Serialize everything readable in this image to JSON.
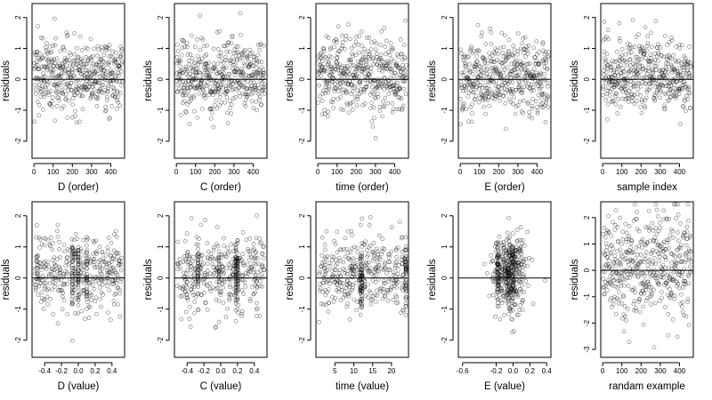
{
  "chart_data": [
    {
      "type": "scatter",
      "xlabel": "D (order)",
      "ylabel": "residuals",
      "xlim": [
        -10,
        472
      ],
      "ylim": [
        -2.55,
        2.45
      ],
      "xticks": [
        0,
        100,
        200,
        300,
        400
      ],
      "xtick_labels": [
        "0",
        "100",
        "200",
        "300",
        "400"
      ],
      "yticks": [
        -2,
        -1,
        0,
        1,
        2
      ],
      "ytick_labels": [
        "-2",
        "-1",
        "0",
        "1",
        "2"
      ],
      "hline": 0,
      "points": {
        "n": 460,
        "x_kind": "index",
        "x_min": 1,
        "x_max": 460,
        "y_center": 0.15,
        "y_spread": 0.6,
        "y_min": -2.3,
        "y_max": 2.2
      }
    },
    {
      "type": "scatter",
      "xlabel": "C (order)",
      "ylabel": "residuals",
      "xlim": [
        -10,
        472
      ],
      "ylim": [
        -2.55,
        2.45
      ],
      "xticks": [
        0,
        100,
        200,
        300,
        400
      ],
      "xtick_labels": [
        "0",
        "100",
        "200",
        "300",
        "400"
      ],
      "yticks": [
        -2,
        -1,
        0,
        1,
        2
      ],
      "ytick_labels": [
        "-2",
        "-1",
        "0",
        "1",
        "2"
      ],
      "hline": 0,
      "points": {
        "n": 460,
        "x_kind": "index",
        "x_min": 1,
        "x_max": 460,
        "y_center": 0.15,
        "y_spread": 0.6,
        "y_min": -2.3,
        "y_max": 2.2
      }
    },
    {
      "type": "scatter",
      "xlabel": "time (order)",
      "ylabel": "residuals",
      "xlim": [
        -10,
        472
      ],
      "ylim": [
        -2.55,
        2.45
      ],
      "xticks": [
        0,
        100,
        200,
        300,
        400
      ],
      "xtick_labels": [
        "0",
        "100",
        "200",
        "300",
        "400"
      ],
      "yticks": [
        -2,
        -1,
        0,
        1,
        2
      ],
      "ytick_labels": [
        "-2",
        "-1",
        "0",
        "1",
        "2"
      ],
      "hline": 0,
      "points": {
        "n": 460,
        "x_kind": "index",
        "x_min": 1,
        "x_max": 460,
        "y_center": 0.15,
        "y_spread": 0.6,
        "y_min": -2.3,
        "y_max": 2.2
      }
    },
    {
      "type": "scatter",
      "xlabel": "E (order)",
      "ylabel": "residuals",
      "xlim": [
        -10,
        472
      ],
      "ylim": [
        -2.55,
        2.45
      ],
      "xticks": [
        0,
        100,
        200,
        300,
        400
      ],
      "xtick_labels": [
        "0",
        "100",
        "200",
        "300",
        "400"
      ],
      "yticks": [
        -2,
        -1,
        0,
        1,
        2
      ],
      "ytick_labels": [
        "-2",
        "-1",
        "0",
        "1",
        "2"
      ],
      "hline": 0,
      "points": {
        "n": 460,
        "x_kind": "index",
        "x_min": 1,
        "x_max": 460,
        "y_center": 0.15,
        "y_spread": 0.6,
        "y_min": -2.3,
        "y_max": 2.2
      }
    },
    {
      "type": "scatter",
      "xlabel": "sample index",
      "ylabel": "residuals",
      "xlim": [
        -10,
        472
      ],
      "ylim": [
        -2.55,
        2.45
      ],
      "xticks": [
        0,
        100,
        200,
        300,
        400
      ],
      "xtick_labels": [
        "0",
        "100",
        "200",
        "300",
        "400"
      ],
      "yticks": [
        -2,
        -1,
        0,
        1,
        2
      ],
      "ytick_labels": [
        "-2",
        "-1",
        "0",
        "1",
        "2"
      ],
      "hline": 0,
      "points": {
        "n": 460,
        "x_kind": "index",
        "x_min": 1,
        "x_max": 460,
        "y_center": 0.15,
        "y_spread": 0.6,
        "y_min": -2.3,
        "y_max": 2.2
      }
    },
    {
      "type": "scatter",
      "xlabel": "D (value)",
      "ylabel": "residuals",
      "xlim": [
        -0.55,
        0.55
      ],
      "ylim": [
        -2.55,
        2.45
      ],
      "xticks": [
        -0.4,
        -0.2,
        0,
        0.2,
        0.4
      ],
      "xtick_labels": [
        "-0.4",
        "-0.2",
        "0.0",
        "0.2",
        "0.4"
      ],
      "yticks": [
        -2,
        -1,
        0,
        1,
        2
      ],
      "ytick_labels": [
        "-2",
        "-1",
        "0",
        "1",
        "2"
      ],
      "hline": 0,
      "points": {
        "n": 460,
        "x_kind": "uniform",
        "x_min": -0.52,
        "x_max": 0.52,
        "x_columns": [
          -0.07,
          0.0,
          0.1
        ],
        "y_center": 0.15,
        "y_spread": 0.6,
        "y_min": -2.3,
        "y_max": 2.2
      }
    },
    {
      "type": "scatter",
      "xlabel": "C (value)",
      "ylabel": "residuals",
      "xlim": [
        -0.55,
        0.55
      ],
      "ylim": [
        -2.55,
        2.45
      ],
      "xticks": [
        -0.4,
        -0.2,
        0,
        0.2,
        0.4
      ],
      "xtick_labels": [
        "-0.4",
        "-0.2",
        "0.0",
        "0.2",
        "0.4"
      ],
      "yticks": [
        -2,
        -1,
        0,
        1,
        2
      ],
      "ytick_labels": [
        "-2",
        "-1",
        "0",
        "1",
        "2"
      ],
      "hline": 0,
      "points": {
        "n": 460,
        "x_kind": "uniform",
        "x_min": -0.52,
        "x_max": 0.52,
        "x_columns": [
          -0.27,
          -0.02,
          0.18,
          0.2
        ],
        "y_center": 0.15,
        "y_spread": 0.6,
        "y_min": -2.3,
        "y_max": 2.2
      }
    },
    {
      "type": "scatter",
      "xlabel": "time (value)",
      "ylabel": "residuals",
      "xlim": [
        0,
        24.5
      ],
      "ylim": [
        -2.55,
        2.45
      ],
      "xticks": [
        5,
        10,
        15,
        20
      ],
      "xtick_labels": [
        "5",
        "10",
        "15",
        "20"
      ],
      "yticks": [
        -2,
        -1,
        0,
        1,
        2
      ],
      "ytick_labels": [
        "-2",
        "-1",
        "0",
        "1",
        "2"
      ],
      "hline": 0,
      "points": {
        "n": 460,
        "x_kind": "uniform",
        "x_min": 0.8,
        "x_max": 24,
        "x_columns": [
          11.8,
          12.2,
          23.8
        ],
        "y_center": 0.15,
        "y_spread": 0.6,
        "y_min": -2.3,
        "y_max": 2.2
      }
    },
    {
      "type": "scatter",
      "xlabel": "E (value)",
      "ylabel": "residuals",
      "xlim": [
        -0.65,
        0.45
      ],
      "ylim": [
        -2.55,
        2.45
      ],
      "xticks": [
        -0.6,
        -0.2,
        0,
        0.2,
        0.4
      ],
      "xtick_labels": [
        "-0.6",
        "-0.2",
        "0.0",
        "0.2",
        "0.4"
      ],
      "yticks": [
        -2,
        -1,
        0,
        1,
        2
      ],
      "ytick_labels": [
        "-2",
        "-1",
        "0",
        "1",
        "2"
      ],
      "hline": 0,
      "points": {
        "n": 460,
        "x_kind": "concentrated",
        "x_min": -0.62,
        "x_max": 0.42,
        "x_center": -0.03,
        "x_spread": 0.1,
        "x_columns": [
          -0.18,
          -0.05,
          0.0
        ],
        "y_center": 0.15,
        "y_spread": 0.6,
        "y_min": -2.3,
        "y_max": 2.2
      }
    },
    {
      "type": "scatter",
      "xlabel": "randam example",
      "ylabel": "residuals",
      "xlim": [
        -10,
        472
      ],
      "ylim": [
        -3.3,
        2.6
      ],
      "xticks": [
        0,
        100,
        200,
        300,
        400
      ],
      "xtick_labels": [
        "0",
        "100",
        "200",
        "300",
        "400"
      ],
      "yticks": [
        -3,
        -2,
        -1,
        0,
        1,
        2
      ],
      "ytick_labels": [
        "-3",
        "-2",
        "-1",
        "0",
        "1",
        "2"
      ],
      "hline": 0,
      "points": {
        "n": 460,
        "x_kind": "index",
        "x_min": 1,
        "x_max": 460,
        "y_center": 0.1,
        "y_spread": 1.0,
        "y_min": -3.1,
        "y_max": 2.5
      }
    }
  ]
}
